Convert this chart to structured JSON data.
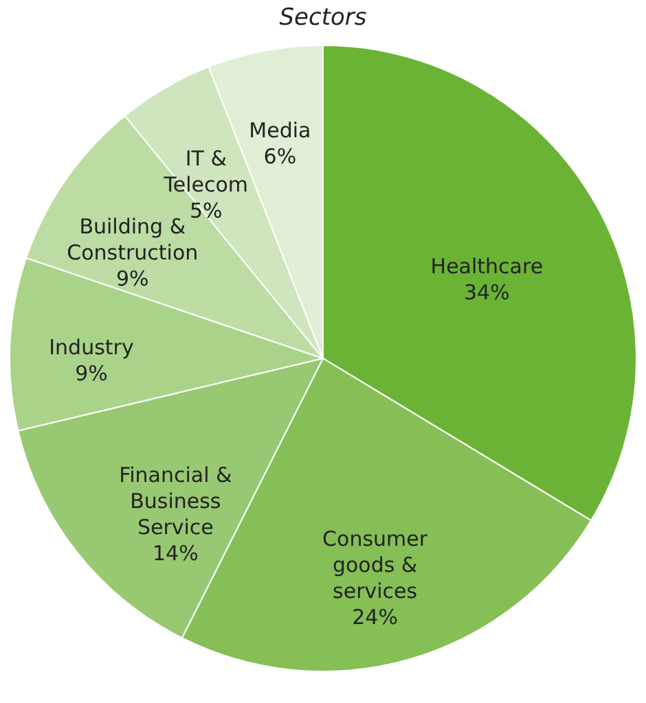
{
  "chart_data": {
    "type": "pie",
    "title": "Sectors",
    "categories": [
      "Healthcare",
      "Consumer goods & services",
      "Financial & Business Service",
      "Industry",
      "Building & Construction",
      "IT & Telecom",
      "Media"
    ],
    "values": [
      34,
      24,
      14,
      9,
      9,
      5,
      6
    ],
    "value_labels": [
      "34%",
      "24%",
      "14%",
      "9%",
      "9%",
      "5%",
      "6%"
    ],
    "colors": [
      "#6bb335",
      "#85bf56",
      "#99c873",
      "#aad38a",
      "#bcdca4",
      "#cfe5bd",
      "#e0eed5"
    ],
    "legend": false
  }
}
